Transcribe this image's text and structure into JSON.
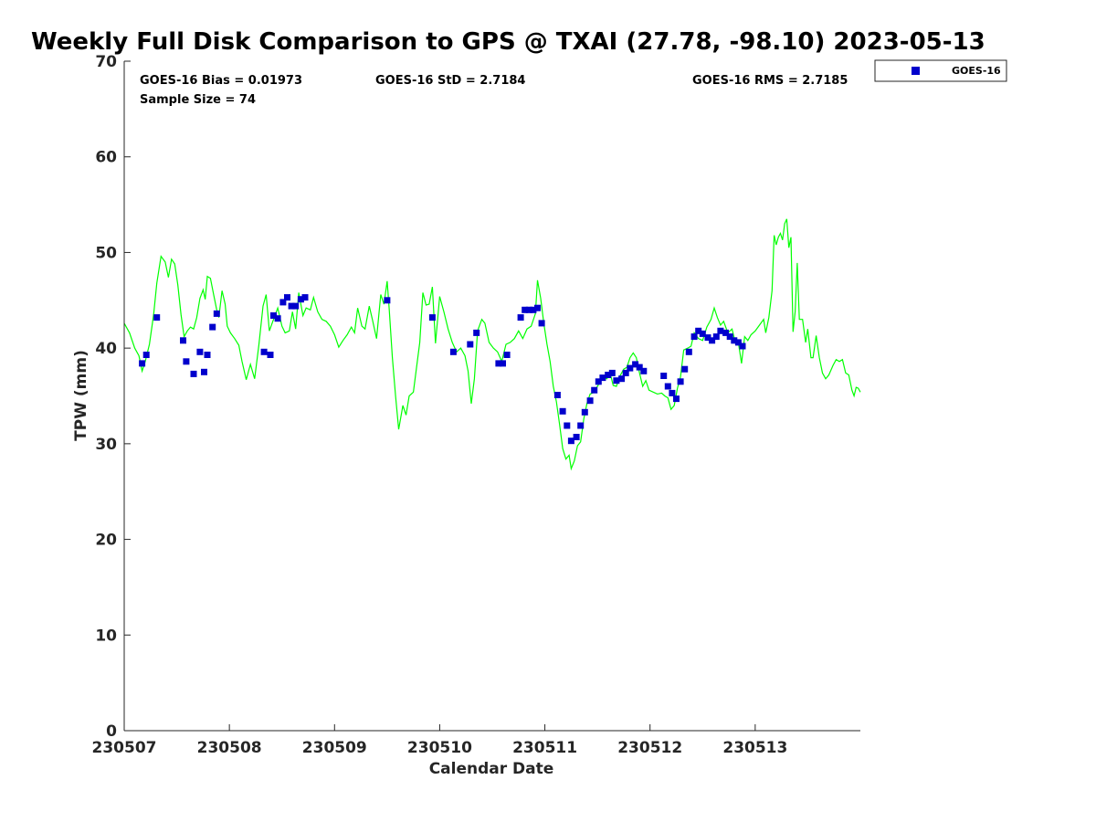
{
  "chart_data": {
    "type": "scatter",
    "title": "Weekly Full Disk Comparison to GPS @ TXAI (27.78, -98.10) 2023-05-13",
    "xlabel": "Calendar Date",
    "ylabel": "TPW (mm)",
    "xlim": [
      0,
      7
    ],
    "ylim": [
      0,
      70
    ],
    "y_ticks": [
      0,
      10,
      20,
      30,
      40,
      50,
      60,
      70
    ],
    "x_tick_positions": [
      0,
      1,
      2,
      3,
      4,
      5,
      6
    ],
    "x_tick_labels": [
      "230507",
      "230508",
      "230509",
      "230510",
      "230511",
      "230512",
      "230513"
    ],
    "x_units": "days since 2023-05-07 00 UTC",
    "grid": false,
    "legend_position": "outside-top-right",
    "stats": {
      "bias": "GOES-16 Bias = 0.01973",
      "std": "GOES-16 StD = 2.7184",
      "rms": "GOES-16 RMS = 2.7185",
      "sample": "Sample Size = 74"
    },
    "colors": {
      "line": "#00ff00",
      "marker": "#0000cc",
      "axis": "#262626"
    },
    "series": [
      {
        "name": "GOES-16",
        "type": "scatter",
        "marker": "square",
        "points": [
          [
            0.17,
            38.4
          ],
          [
            0.21,
            39.3
          ],
          [
            0.31,
            43.2
          ],
          [
            0.56,
            40.8
          ],
          [
            0.59,
            38.6
          ],
          [
            0.66,
            37.3
          ],
          [
            0.72,
            39.6
          ],
          [
            0.76,
            37.5
          ],
          [
            0.79,
            39.3
          ],
          [
            0.84,
            42.2
          ],
          [
            0.88,
            43.6
          ],
          [
            1.33,
            39.6
          ],
          [
            1.39,
            39.3
          ],
          [
            1.42,
            43.4
          ],
          [
            1.46,
            43.1
          ],
          [
            1.51,
            44.8
          ],
          [
            1.55,
            45.3
          ],
          [
            1.59,
            44.4
          ],
          [
            1.63,
            44.4
          ],
          [
            1.68,
            45.1
          ],
          [
            1.72,
            45.3
          ],
          [
            2.5,
            45.0
          ],
          [
            2.93,
            43.2
          ],
          [
            3.13,
            39.6
          ],
          [
            3.29,
            40.4
          ],
          [
            3.35,
            41.6
          ],
          [
            3.56,
            38.4
          ],
          [
            3.6,
            38.4
          ],
          [
            3.64,
            39.3
          ],
          [
            3.77,
            43.2
          ],
          [
            3.81,
            44.0
          ],
          [
            3.85,
            44.0
          ],
          [
            3.89,
            44.0
          ],
          [
            3.93,
            44.2
          ],
          [
            3.97,
            42.6
          ],
          [
            4.12,
            35.1
          ],
          [
            4.17,
            33.4
          ],
          [
            4.21,
            31.9
          ],
          [
            4.25,
            30.3
          ],
          [
            4.3,
            30.7
          ],
          [
            4.34,
            31.9
          ],
          [
            4.38,
            33.3
          ],
          [
            4.43,
            34.5
          ],
          [
            4.47,
            35.6
          ],
          [
            4.51,
            36.5
          ],
          [
            4.55,
            36.9
          ],
          [
            4.6,
            37.2
          ],
          [
            4.64,
            37.4
          ],
          [
            4.68,
            36.6
          ],
          [
            4.73,
            36.8
          ],
          [
            4.77,
            37.4
          ],
          [
            4.81,
            37.9
          ],
          [
            4.86,
            38.3
          ],
          [
            4.9,
            38.0
          ],
          [
            4.94,
            37.6
          ],
          [
            5.13,
            37.1
          ],
          [
            5.17,
            36.0
          ],
          [
            5.21,
            35.3
          ],
          [
            5.25,
            34.7
          ],
          [
            5.29,
            36.5
          ],
          [
            5.33,
            37.8
          ],
          [
            5.37,
            39.6
          ],
          [
            5.42,
            41.2
          ],
          [
            5.46,
            41.8
          ],
          [
            5.5,
            41.5
          ],
          [
            5.55,
            41.1
          ],
          [
            5.59,
            40.8
          ],
          [
            5.63,
            41.2
          ],
          [
            5.67,
            41.8
          ],
          [
            5.72,
            41.6
          ],
          [
            5.76,
            41.2
          ],
          [
            5.8,
            40.8
          ],
          [
            5.84,
            40.6
          ],
          [
            5.88,
            40.2
          ]
        ]
      },
      {
        "name": "",
        "type": "line",
        "points": [
          [
            0.0,
            42.6
          ],
          [
            0.05,
            41.6
          ],
          [
            0.1,
            40.0
          ],
          [
            0.14,
            39.2
          ],
          [
            0.17,
            37.6
          ],
          [
            0.2,
            38.6
          ],
          [
            0.24,
            40.4
          ],
          [
            0.28,
            43.5
          ],
          [
            0.31,
            46.8
          ],
          [
            0.35,
            49.6
          ],
          [
            0.39,
            49.0
          ],
          [
            0.42,
            47.4
          ],
          [
            0.45,
            49.3
          ],
          [
            0.48,
            48.8
          ],
          [
            0.51,
            46.6
          ],
          [
            0.54,
            43.5
          ],
          [
            0.57,
            41.2
          ],
          [
            0.6,
            41.8
          ],
          [
            0.63,
            42.2
          ],
          [
            0.66,
            42.0
          ],
          [
            0.69,
            43.2
          ],
          [
            0.72,
            45.2
          ],
          [
            0.75,
            46.1
          ],
          [
            0.77,
            45.1
          ],
          [
            0.79,
            47.5
          ],
          [
            0.82,
            47.3
          ],
          [
            0.85,
            45.6
          ],
          [
            0.88,
            44.0
          ],
          [
            0.9,
            43.2
          ],
          [
            0.93,
            46.0
          ],
          [
            0.96,
            44.6
          ],
          [
            0.98,
            42.3
          ],
          [
            1.01,
            41.6
          ],
          [
            1.05,
            41.0
          ],
          [
            1.09,
            40.3
          ],
          [
            1.12,
            38.6
          ],
          [
            1.16,
            36.7
          ],
          [
            1.2,
            38.3
          ],
          [
            1.24,
            36.8
          ],
          [
            1.28,
            40.3
          ],
          [
            1.32,
            44.4
          ],
          [
            1.35,
            45.6
          ],
          [
            1.38,
            41.8
          ],
          [
            1.42,
            43.0
          ],
          [
            1.46,
            44.2
          ],
          [
            1.5,
            42.3
          ],
          [
            1.53,
            41.6
          ],
          [
            1.57,
            41.8
          ],
          [
            1.6,
            43.8
          ],
          [
            1.63,
            42.0
          ],
          [
            1.66,
            45.8
          ],
          [
            1.7,
            43.4
          ],
          [
            1.73,
            44.2
          ],
          [
            1.77,
            44.0
          ],
          [
            1.8,
            45.3
          ],
          [
            1.84,
            43.8
          ],
          [
            1.88,
            43.0
          ],
          [
            1.92,
            42.8
          ],
          [
            1.96,
            42.3
          ],
          [
            2.0,
            41.4
          ],
          [
            2.04,
            40.1
          ],
          [
            2.08,
            40.8
          ],
          [
            2.12,
            41.4
          ],
          [
            2.16,
            42.2
          ],
          [
            2.19,
            41.6
          ],
          [
            2.22,
            44.2
          ],
          [
            2.26,
            42.3
          ],
          [
            2.29,
            42.0
          ],
          [
            2.33,
            44.4
          ],
          [
            2.36,
            43.0
          ],
          [
            2.4,
            41.0
          ],
          [
            2.44,
            45.6
          ],
          [
            2.47,
            44.6
          ],
          [
            2.5,
            47.0
          ],
          [
            2.52,
            44.0
          ],
          [
            2.55,
            39.0
          ],
          [
            2.58,
            35.0
          ],
          [
            2.61,
            31.5
          ],
          [
            2.65,
            34.0
          ],
          [
            2.68,
            33.0
          ],
          [
            2.71,
            35.0
          ],
          [
            2.75,
            35.4
          ],
          [
            2.78,
            38.0
          ],
          [
            2.81,
            40.6
          ],
          [
            2.84,
            45.8
          ],
          [
            2.87,
            44.5
          ],
          [
            2.9,
            44.6
          ],
          [
            2.93,
            46.4
          ],
          [
            2.96,
            40.5
          ],
          [
            3.0,
            45.4
          ],
          [
            3.04,
            43.8
          ],
          [
            3.08,
            42.0
          ],
          [
            3.12,
            40.6
          ],
          [
            3.16,
            39.6
          ],
          [
            3.2,
            40.0
          ],
          [
            3.24,
            39.2
          ],
          [
            3.27,
            37.6
          ],
          [
            3.3,
            34.2
          ],
          [
            3.33,
            36.8
          ],
          [
            3.36,
            41.8
          ],
          [
            3.4,
            43.0
          ],
          [
            3.43,
            42.6
          ],
          [
            3.47,
            40.6
          ],
          [
            3.51,
            40.0
          ],
          [
            3.55,
            39.6
          ],
          [
            3.59,
            38.6
          ],
          [
            3.63,
            40.4
          ],
          [
            3.67,
            40.6
          ],
          [
            3.71,
            41.0
          ],
          [
            3.75,
            41.8
          ],
          [
            3.79,
            41.0
          ],
          [
            3.83,
            42.0
          ],
          [
            3.87,
            42.3
          ],
          [
            3.91,
            43.6
          ],
          [
            3.93,
            47.1
          ],
          [
            3.96,
            45.2
          ],
          [
            3.99,
            42.6
          ],
          [
            4.02,
            40.4
          ],
          [
            4.05,
            38.6
          ],
          [
            4.08,
            36.0
          ],
          [
            4.11,
            34.4
          ],
          [
            4.14,
            32.0
          ],
          [
            4.17,
            29.5
          ],
          [
            4.2,
            28.4
          ],
          [
            4.23,
            28.8
          ],
          [
            4.25,
            27.4
          ],
          [
            4.28,
            28.2
          ],
          [
            4.31,
            29.8
          ],
          [
            4.34,
            30.2
          ],
          [
            4.37,
            32.6
          ],
          [
            4.4,
            34.2
          ],
          [
            4.43,
            35.2
          ],
          [
            4.47,
            35.4
          ],
          [
            4.51,
            36.2
          ],
          [
            4.55,
            37.0
          ],
          [
            4.59,
            36.8
          ],
          [
            4.62,
            37.4
          ],
          [
            4.65,
            36.1
          ],
          [
            4.68,
            36.0
          ],
          [
            4.71,
            37.0
          ],
          [
            4.75,
            37.8
          ],
          [
            4.78,
            38.0
          ],
          [
            4.81,
            39.0
          ],
          [
            4.84,
            39.5
          ],
          [
            4.87,
            39.0
          ],
          [
            4.9,
            37.4
          ],
          [
            4.93,
            36.0
          ],
          [
            4.96,
            36.6
          ],
          [
            4.99,
            35.6
          ],
          [
            5.03,
            35.4
          ],
          [
            5.07,
            35.2
          ],
          [
            5.11,
            35.3
          ],
          [
            5.14,
            35.0
          ],
          [
            5.17,
            34.8
          ],
          [
            5.2,
            33.6
          ],
          [
            5.23,
            34.0
          ],
          [
            5.26,
            35.8
          ],
          [
            5.29,
            37.0
          ],
          [
            5.32,
            39.8
          ],
          [
            5.36,
            40.0
          ],
          [
            5.39,
            40.2
          ],
          [
            5.42,
            41.6
          ],
          [
            5.46,
            41.0
          ],
          [
            5.5,
            40.8
          ],
          [
            5.54,
            42.2
          ],
          [
            5.58,
            43.0
          ],
          [
            5.61,
            44.2
          ],
          [
            5.64,
            43.2
          ],
          [
            5.67,
            42.4
          ],
          [
            5.7,
            42.8
          ],
          [
            5.74,
            41.6
          ],
          [
            5.78,
            42.0
          ],
          [
            5.81,
            40.6
          ],
          [
            5.84,
            40.6
          ],
          [
            5.87,
            38.4
          ],
          [
            5.9,
            41.2
          ],
          [
            5.93,
            40.8
          ],
          [
            5.96,
            41.4
          ],
          [
            6.0,
            41.8
          ],
          [
            6.04,
            42.4
          ],
          [
            6.08,
            43.0
          ],
          [
            6.1,
            41.6
          ],
          [
            6.13,
            43.2
          ],
          [
            6.16,
            46.0
          ],
          [
            6.18,
            51.8
          ],
          [
            6.2,
            50.8
          ],
          [
            6.22,
            51.6
          ],
          [
            6.24,
            52.0
          ],
          [
            6.26,
            51.3
          ],
          [
            6.28,
            53.0
          ],
          [
            6.3,
            53.5
          ],
          [
            6.32,
            50.5
          ],
          [
            6.34,
            51.6
          ],
          [
            6.36,
            41.7
          ],
          [
            6.38,
            43.8
          ],
          [
            6.4,
            48.9
          ],
          [
            6.42,
            43.0
          ],
          [
            6.45,
            43.0
          ],
          [
            6.48,
            40.6
          ],
          [
            6.5,
            42.0
          ],
          [
            6.53,
            39.0
          ],
          [
            6.55,
            39.0
          ],
          [
            6.58,
            41.3
          ],
          [
            6.61,
            39.0
          ],
          [
            6.64,
            37.4
          ],
          [
            6.67,
            36.8
          ],
          [
            6.7,
            37.2
          ],
          [
            6.74,
            38.2
          ],
          [
            6.77,
            38.8
          ],
          [
            6.8,
            38.6
          ],
          [
            6.83,
            38.8
          ],
          [
            6.86,
            37.4
          ],
          [
            6.89,
            37.2
          ],
          [
            6.92,
            35.6
          ],
          [
            6.94,
            35.0
          ],
          [
            6.96,
            35.9
          ],
          [
            6.98,
            35.8
          ],
          [
            7.0,
            35.4
          ]
        ]
      }
    ]
  }
}
